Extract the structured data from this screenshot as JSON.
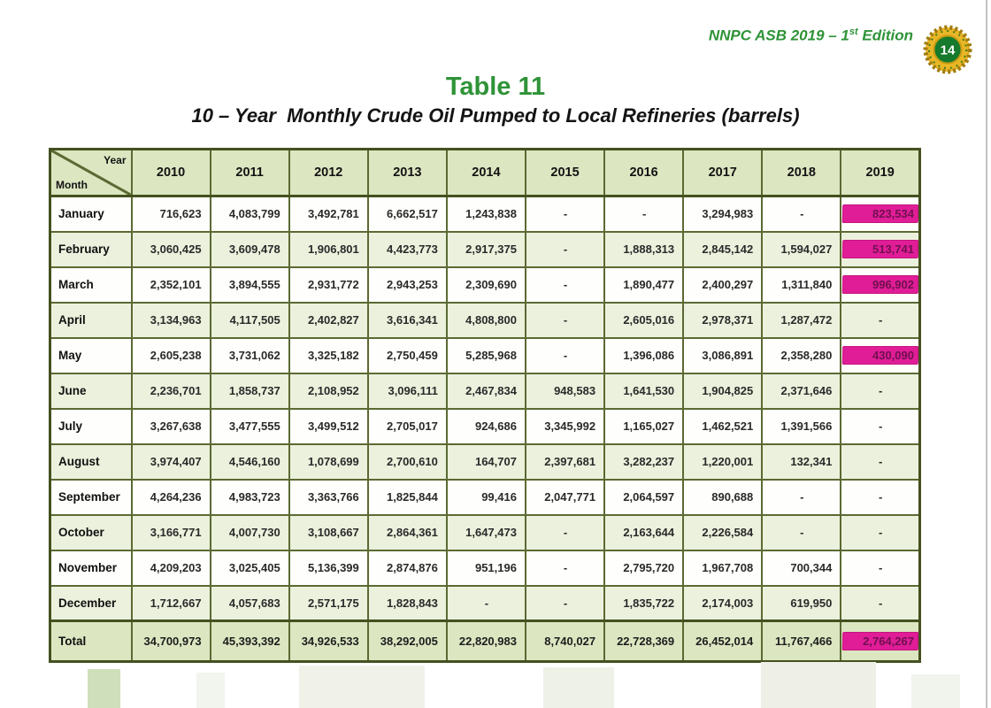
{
  "page": {
    "edition_prefix": "NNPC ASB 2019 – 1",
    "edition_sup": "st",
    "edition_suffix": " Edition",
    "badge_number": "14",
    "title": "Table 11",
    "subtitle": "10 – Year  Monthly Crude Oil Pumped to Local Refineries (barrels)"
  },
  "colors": {
    "brand_green": "#2e9337",
    "table_border": "#5b6a33",
    "header_bg": "#dce6c1",
    "alt_row_bg": "#ecf1dd",
    "highlight_pink": "#e01d97",
    "logo_gold": "#e9b627",
    "logo_green": "#157a2b"
  },
  "table": {
    "corner": {
      "top_label": "Year",
      "bottom_label": "Month"
    },
    "years": [
      "2010",
      "2011",
      "2012",
      "2013",
      "2014",
      "2015",
      "2016",
      "2017",
      "2018",
      "2019"
    ],
    "rows": [
      {
        "month": "January",
        "values": [
          "716,623",
          "4,083,799",
          "3,492,781",
          "6,662,517",
          "1,243,838",
          "-",
          "-",
          "3,294,983",
          "-",
          "823,534"
        ],
        "highlight_cols": [
          9
        ]
      },
      {
        "month": "February",
        "values": [
          "3,060,425",
          "3,609,478",
          "1,906,801",
          "4,423,773",
          "2,917,375",
          "-",
          "1,888,313",
          "2,845,142",
          "1,594,027",
          "513,741"
        ],
        "highlight_cols": [
          9
        ]
      },
      {
        "month": "March",
        "values": [
          "2,352,101",
          "3,894,555",
          "2,931,772",
          "2,943,253",
          "2,309,690",
          "-",
          "1,890,477",
          "2,400,297",
          "1,311,840",
          "996,902"
        ],
        "highlight_cols": [
          9
        ]
      },
      {
        "month": "April",
        "values": [
          "3,134,963",
          "4,117,505",
          "2,402,827",
          "3,616,341",
          "4,808,800",
          "-",
          "2,605,016",
          "2,978,371",
          "1,287,472",
          "-"
        ],
        "highlight_cols": []
      },
      {
        "month": "May",
        "values": [
          "2,605,238",
          "3,731,062",
          "3,325,182",
          "2,750,459",
          "5,285,968",
          "-",
          "1,396,086",
          "3,086,891",
          "2,358,280",
          "430,090"
        ],
        "highlight_cols": [
          9
        ]
      },
      {
        "month": "June",
        "values": [
          "2,236,701",
          "1,858,737",
          "2,108,952",
          "3,096,111",
          "2,467,834",
          "948,583",
          "1,641,530",
          "1,904,825",
          "2,371,646",
          "-"
        ],
        "highlight_cols": []
      },
      {
        "month": "July",
        "values": [
          "3,267,638",
          "3,477,555",
          "3,499,512",
          "2,705,017",
          "924,686",
          "3,345,992",
          "1,165,027",
          "1,462,521",
          "1,391,566",
          "-"
        ],
        "highlight_cols": []
      },
      {
        "month": "August",
        "values": [
          "3,974,407",
          "4,546,160",
          "1,078,699",
          "2,700,610",
          "164,707",
          "2,397,681",
          "3,282,237",
          "1,220,001",
          "132,341",
          "-"
        ],
        "highlight_cols": []
      },
      {
        "month": "September",
        "values": [
          "4,264,236",
          "4,983,723",
          "3,363,766",
          "1,825,844",
          "99,416",
          "2,047,771",
          "2,064,597",
          "890,688",
          "-",
          "-"
        ],
        "highlight_cols": []
      },
      {
        "month": "October",
        "values": [
          "3,166,771",
          "4,007,730",
          "3,108,667",
          "2,864,361",
          "1,647,473",
          "-",
          "2,163,644",
          "2,226,584",
          "-",
          "-"
        ],
        "highlight_cols": []
      },
      {
        "month": "November",
        "values": [
          "4,209,203",
          "3,025,405",
          "5,136,399",
          "2,874,876",
          "951,196",
          "-",
          "2,795,720",
          "1,967,708",
          "700,344",
          "-"
        ],
        "highlight_cols": []
      },
      {
        "month": "December",
        "values": [
          "1,712,667",
          "4,057,683",
          "2,571,175",
          "1,828,843",
          "-",
          "-",
          "1,835,722",
          "2,174,003",
          "619,950",
          "-"
        ],
        "highlight_cols": []
      }
    ],
    "total": {
      "label": "Total",
      "values": [
        "34,700,973",
        "45,393,392",
        "34,926,533",
        "38,292,005",
        "22,820,983",
        "8,740,027",
        "22,728,369",
        "26,452,014",
        "11,767,466",
        "2,764,267"
      ],
      "highlight_cols": [
        9
      ]
    }
  }
}
